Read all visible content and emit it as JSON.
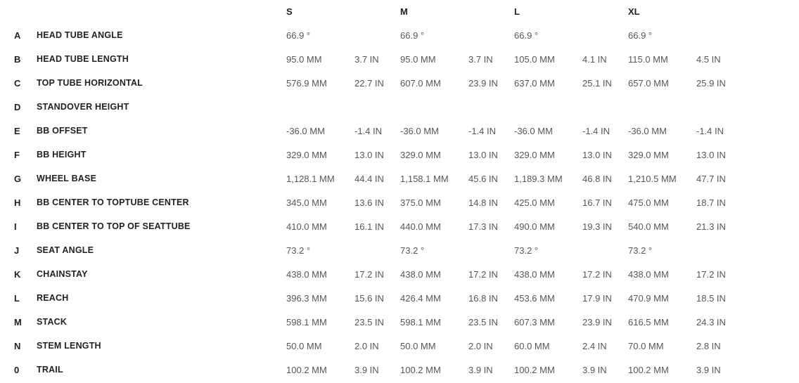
{
  "colors": {
    "label_text": "#231f20",
    "value_text": "#54565a",
    "background": "#ffffff"
  },
  "table": {
    "name": "bike-geometry-table",
    "size_headers": [
      "S",
      "M",
      "L",
      "XL"
    ],
    "rows": [
      {
        "letter": "A",
        "label": "HEAD TUBE ANGLE",
        "cells": [
          {
            "primary": "66.9 °",
            "secondary": ""
          },
          {
            "primary": "66.9 °",
            "secondary": ""
          },
          {
            "primary": "66.9 °",
            "secondary": ""
          },
          {
            "primary": "66.9 °",
            "secondary": ""
          }
        ]
      },
      {
        "letter": "B",
        "label": "HEAD TUBE LENGTH",
        "cells": [
          {
            "primary": "95.0 MM",
            "secondary": "3.7 IN"
          },
          {
            "primary": "95.0 MM",
            "secondary": "3.7 IN"
          },
          {
            "primary": "105.0 MM",
            "secondary": "4.1 IN"
          },
          {
            "primary": "115.0 MM",
            "secondary": "4.5 IN"
          }
        ]
      },
      {
        "letter": "C",
        "label": "TOP TUBE HORIZONTAL",
        "cells": [
          {
            "primary": "576.9 MM",
            "secondary": "22.7 IN"
          },
          {
            "primary": "607.0 MM",
            "secondary": "23.9 IN"
          },
          {
            "primary": "637.0 MM",
            "secondary": "25.1 IN"
          },
          {
            "primary": "657.0 MM",
            "secondary": "25.9 IN"
          }
        ]
      },
      {
        "letter": "D",
        "label": "STANDOVER HEIGHT",
        "cells": [
          {
            "primary": "",
            "secondary": ""
          },
          {
            "primary": "",
            "secondary": ""
          },
          {
            "primary": "",
            "secondary": ""
          },
          {
            "primary": "",
            "secondary": ""
          }
        ]
      },
      {
        "letter": "E",
        "label": "BB OFFSET",
        "cells": [
          {
            "primary": "-36.0 MM",
            "secondary": "-1.4 IN"
          },
          {
            "primary": "-36.0 MM",
            "secondary": "-1.4 IN"
          },
          {
            "primary": "-36.0 MM",
            "secondary": "-1.4 IN"
          },
          {
            "primary": "-36.0 MM",
            "secondary": "-1.4 IN"
          }
        ]
      },
      {
        "letter": "F",
        "label": "BB HEIGHT",
        "cells": [
          {
            "primary": "329.0 MM",
            "secondary": "13.0 IN"
          },
          {
            "primary": "329.0 MM",
            "secondary": "13.0 IN"
          },
          {
            "primary": "329.0 MM",
            "secondary": "13.0 IN"
          },
          {
            "primary": "329.0 MM",
            "secondary": "13.0 IN"
          }
        ]
      },
      {
        "letter": "G",
        "label": "WHEEL BASE",
        "cells": [
          {
            "primary": "1,128.1 MM",
            "secondary": "44.4 IN"
          },
          {
            "primary": "1,158.1 MM",
            "secondary": "45.6 IN"
          },
          {
            "primary": "1,189.3 MM",
            "secondary": "46.8 IN"
          },
          {
            "primary": "1,210.5 MM",
            "secondary": "47.7 IN"
          }
        ]
      },
      {
        "letter": "H",
        "label": "BB CENTER TO TOPTUBE CENTER",
        "cells": [
          {
            "primary": "345.0 MM",
            "secondary": "13.6 IN"
          },
          {
            "primary": "375.0 MM",
            "secondary": "14.8 IN"
          },
          {
            "primary": "425.0 MM",
            "secondary": "16.7 IN"
          },
          {
            "primary": "475.0 MM",
            "secondary": "18.7 IN"
          }
        ]
      },
      {
        "letter": "I",
        "label": "BB CENTER TO TOP OF SEATTUBE",
        "cells": [
          {
            "primary": "410.0 MM",
            "secondary": "16.1 IN"
          },
          {
            "primary": "440.0 MM",
            "secondary": "17.3 IN"
          },
          {
            "primary": "490.0 MM",
            "secondary": "19.3 IN"
          },
          {
            "primary": "540.0 MM",
            "secondary": "21.3 IN"
          }
        ]
      },
      {
        "letter": "J",
        "label": "SEAT ANGLE",
        "cells": [
          {
            "primary": "73.2 °",
            "secondary": ""
          },
          {
            "primary": "73.2 °",
            "secondary": ""
          },
          {
            "primary": "73.2 °",
            "secondary": ""
          },
          {
            "primary": "73.2 °",
            "secondary": ""
          }
        ]
      },
      {
        "letter": "K",
        "label": "CHAINSTAY",
        "cells": [
          {
            "primary": "438.0 MM",
            "secondary": "17.2 IN"
          },
          {
            "primary": "438.0 MM",
            "secondary": "17.2 IN"
          },
          {
            "primary": "438.0 MM",
            "secondary": "17.2 IN"
          },
          {
            "primary": "438.0 MM",
            "secondary": "17.2 IN"
          }
        ]
      },
      {
        "letter": "L",
        "label": "REACH",
        "cells": [
          {
            "primary": "396.3 MM",
            "secondary": "15.6 IN"
          },
          {
            "primary": "426.4 MM",
            "secondary": "16.8 IN"
          },
          {
            "primary": "453.6 MM",
            "secondary": "17.9 IN"
          },
          {
            "primary": "470.9 MM",
            "secondary": "18.5 IN"
          }
        ]
      },
      {
        "letter": "M",
        "label": "STACK",
        "cells": [
          {
            "primary": "598.1 MM",
            "secondary": "23.5 IN"
          },
          {
            "primary": "598.1 MM",
            "secondary": "23.5 IN"
          },
          {
            "primary": "607.3 MM",
            "secondary": "23.9 IN"
          },
          {
            "primary": "616.5 MM",
            "secondary": "24.3 IN"
          }
        ]
      },
      {
        "letter": "N",
        "label": "STEM LENGTH",
        "cells": [
          {
            "primary": "50.0 MM",
            "secondary": "2.0 IN"
          },
          {
            "primary": "50.0 MM",
            "secondary": "2.0 IN"
          },
          {
            "primary": "60.0 MM",
            "secondary": "2.4 IN"
          },
          {
            "primary": "70.0 MM",
            "secondary": "2.8 IN"
          }
        ]
      },
      {
        "letter": "0",
        "label": "TRAIL",
        "cells": [
          {
            "primary": "100.2 MM",
            "secondary": "3.9 IN"
          },
          {
            "primary": "100.2 MM",
            "secondary": "3.9 IN"
          },
          {
            "primary": "100.2 MM",
            "secondary": "3.9 IN"
          },
          {
            "primary": "100.2 MM",
            "secondary": "3.9 IN"
          }
        ]
      }
    ]
  }
}
